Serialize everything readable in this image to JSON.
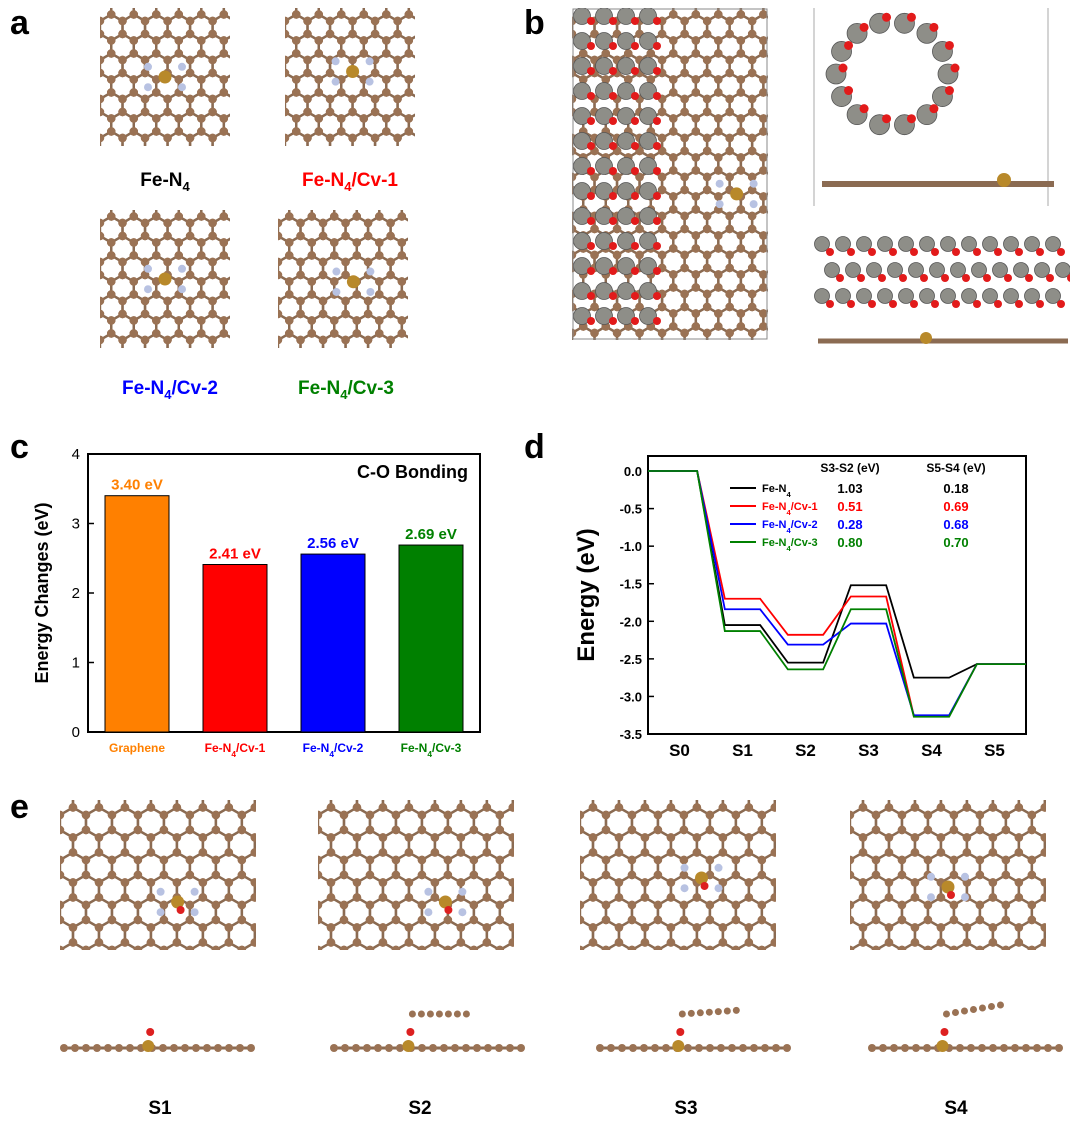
{
  "panels": {
    "a": "a",
    "b": "b",
    "c": "c",
    "d": "d",
    "e": "e"
  },
  "panel_a": {
    "structures": [
      {
        "base": "Fe-N",
        "sub": "4",
        "suffix": "",
        "color": "#000000"
      },
      {
        "base": "Fe-N",
        "sub": "4",
        "suffix": "/Cv-1",
        "color": "#ff0000"
      },
      {
        "base": "Fe-N",
        "sub": "4",
        "suffix": "/Cv-2",
        "color": "#0000ff"
      },
      {
        "base": "Fe-N",
        "sub": "4",
        "suffix": "/Cv-3",
        "color": "#008000"
      }
    ]
  },
  "panel_e": {
    "states": [
      "S1",
      "S2",
      "S3",
      "S4"
    ]
  },
  "chart_data": [
    {
      "type": "bar",
      "title": "C-O Bonding",
      "ylabel": "Energy Changes (eV)",
      "ylim": [
        0,
        4
      ],
      "yticks": [
        "0",
        "1",
        "2",
        "3",
        "4"
      ],
      "categories": [
        {
          "base": "Graphene",
          "sub": "",
          "suffix": ""
        },
        {
          "base": "Fe-N",
          "sub": "4",
          "suffix": "/Cv-1"
        },
        {
          "base": "Fe-N",
          "sub": "4",
          "suffix": "/Cv-2"
        },
        {
          "base": "Fe-N",
          "sub": "4",
          "suffix": "/Cv-3"
        }
      ],
      "values": [
        3.4,
        2.41,
        2.56,
        2.69
      ],
      "data_labels": [
        "3.40 eV",
        "2.41 eV",
        "2.56 eV",
        "2.69 eV"
      ],
      "colors": [
        "#ff8000",
        "#ff0000",
        "#0000ff",
        "#008000"
      ]
    },
    {
      "type": "line",
      "ylabel": "Energy (eV)",
      "ylim": [
        -3.5,
        0.2
      ],
      "yticks": [
        "0.0",
        "-0.5",
        "-1.0",
        "-1.5",
        "-2.0",
        "-2.5",
        "-3.0",
        "-3.5"
      ],
      "x": [
        "S0",
        "S1",
        "S2",
        "S3",
        "S4",
        "S5"
      ],
      "table_headers": [
        "S3-S2 (eV)",
        "S5-S4 (eV)"
      ],
      "series": [
        {
          "legend": {
            "base": "Fe-N",
            "sub": "4",
            "suffix": ""
          },
          "color": "#000000",
          "values": [
            0.0,
            -2.05,
            -2.55,
            -1.52,
            -2.75,
            -2.57
          ],
          "s3_s2": "1.03",
          "s5_s4": "0.18"
        },
        {
          "legend": {
            "base": "Fe-N",
            "sub": "4",
            "suffix": "/Cv-1"
          },
          "color": "#ff0000",
          "values": [
            0.0,
            -1.7,
            -2.18,
            -1.67,
            -3.26,
            -2.57
          ],
          "s3_s2": "0.51",
          "s5_s4": "0.69"
        },
        {
          "legend": {
            "base": "Fe-N",
            "sub": "4",
            "suffix": "/Cv-2"
          },
          "color": "#0000ff",
          "values": [
            0.0,
            -1.84,
            -2.31,
            -2.03,
            -3.25,
            -2.57
          ],
          "s3_s2": "0.28",
          "s5_s4": "0.68"
        },
        {
          "legend": {
            "base": "Fe-N",
            "sub": "4",
            "suffix": "/Cv-3"
          },
          "color": "#008000",
          "values": [
            0.0,
            -2.13,
            -2.64,
            -1.84,
            -3.27,
            -2.57
          ],
          "s3_s2": "0.80",
          "s5_s4": "0.70"
        }
      ]
    }
  ]
}
